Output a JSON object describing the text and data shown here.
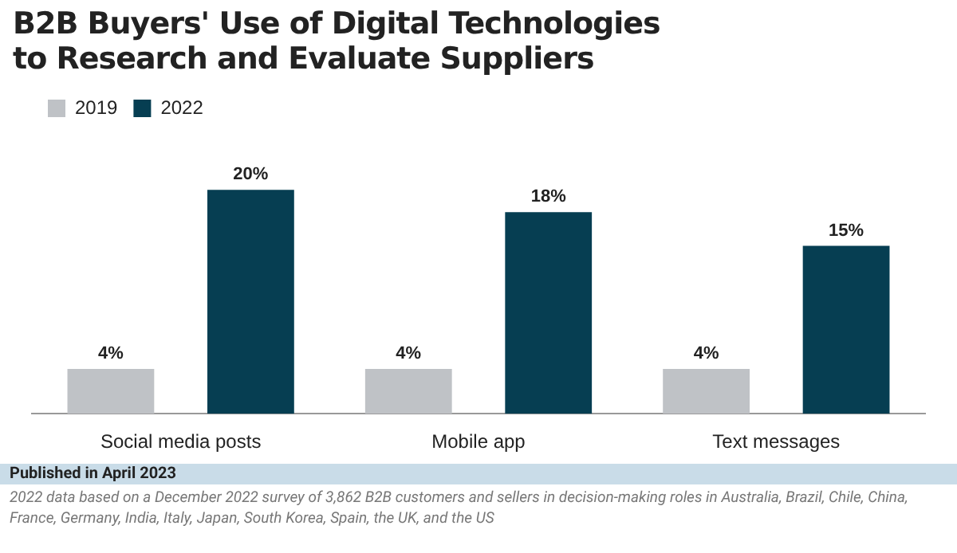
{
  "chart_data": {
    "type": "bar",
    "title": "B2B Buyers' Use of Digital Technologies\nto Research and Evaluate Suppliers",
    "categories": [
      "Social media posts",
      "Mobile app",
      "Text messages"
    ],
    "series": [
      {
        "name": "2019",
        "color": "#bfc2c6",
        "values": [
          4,
          4,
          4
        ],
        "value_labels": [
          "4%",
          "4%",
          "4%"
        ]
      },
      {
        "name": "2022",
        "color": "#063e52",
        "values": [
          20,
          18,
          15
        ],
        "value_labels": [
          "20%",
          "18%",
          "15%"
        ]
      }
    ],
    "legend": "top left",
    "grid": false,
    "tick_labels": "x",
    "annotations": [
      "Published in April 2023",
      "2022 data based on a December 2022 survey of 3,862 B2B customers and sellers in decision-making roles in Australia, Brazil, Chile, China, France, Germany, India, Italy, Japan, South Korea, Spain, the UK, and the US"
    ]
  }
}
